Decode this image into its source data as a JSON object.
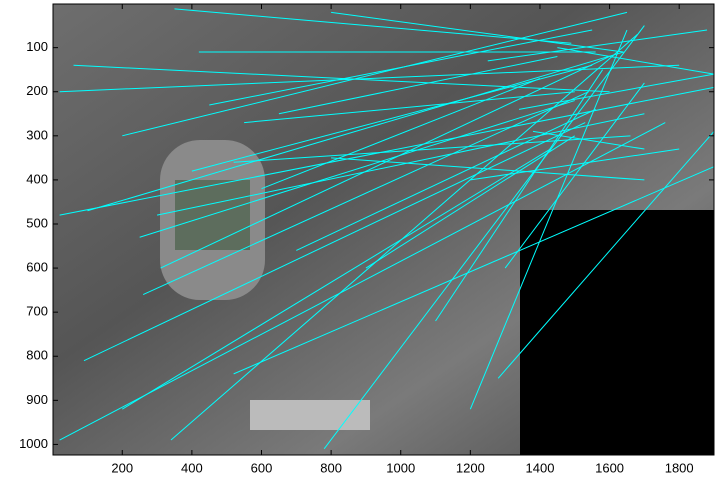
{
  "chart_data": {
    "type": "segments",
    "color": "#00ffff",
    "xlim": [
      1,
      1900
    ],
    "ylim": [
      1,
      1024
    ],
    "y_reversed": true,
    "xticks": [
      200,
      400,
      600,
      800,
      1000,
      1200,
      1400,
      1600,
      1800
    ],
    "yticks": [
      100,
      200,
      300,
      400,
      500,
      600,
      700,
      800,
      900,
      1000
    ],
    "segments": [
      {
        "x": [
          350,
          1490
        ],
        "y": [
          12,
          90
        ]
      },
      {
        "x": [
          420,
          1560
        ],
        "y": [
          110,
          110
        ]
      },
      {
        "x": [
          60,
          1600
        ],
        "y": [
          140,
          200
        ]
      },
      {
        "x": [
          20,
          1800
        ],
        "y": [
          200,
          140
        ]
      },
      {
        "x": [
          100,
          1640
        ],
        "y": [
          470,
          110
        ]
      },
      {
        "x": [
          20,
          1900
        ],
        "y": [
          480,
          190
        ]
      },
      {
        "x": [
          90,
          1530
        ],
        "y": [
          810,
          270
        ]
      },
      {
        "x": [
          20,
          1760
        ],
        "y": [
          990,
          270
        ]
      },
      {
        "x": [
          340,
          1680
        ],
        "y": [
          990,
          70
        ]
      },
      {
        "x": [
          780,
          1700
        ],
        "y": [
          1010,
          50
        ]
      },
      {
        "x": [
          1200,
          1650
        ],
        "y": [
          920,
          60
        ]
      },
      {
        "x": [
          1280,
          1900
        ],
        "y": [
          850,
          290
        ]
      },
      {
        "x": [
          520,
          1900
        ],
        "y": [
          840,
          370
        ]
      },
      {
        "x": [
          260,
          1540
        ],
        "y": [
          660,
          200
        ]
      },
      {
        "x": [
          310,
          1600
        ],
        "y": [
          600,
          120
        ]
      },
      {
        "x": [
          200,
          1430
        ],
        "y": [
          920,
          330
        ]
      },
      {
        "x": [
          700,
          1560
        ],
        "y": [
          560,
          240
        ]
      },
      {
        "x": [
          550,
          1500
        ],
        "y": [
          270,
          200
        ]
      },
      {
        "x": [
          1340,
          1900
        ],
        "y": [
          240,
          160
        ]
      },
      {
        "x": [
          1450,
          1900
        ],
        "y": [
          100,
          160
        ]
      },
      {
        "x": [
          400,
          1550
        ],
        "y": [
          380,
          140
        ]
      },
      {
        "x": [
          600,
          1400
        ],
        "y": [
          420,
          170
        ]
      },
      {
        "x": [
          520,
          1660
        ],
        "y": [
          360,
          300
        ]
      },
      {
        "x": [
          1200,
          1800
        ],
        "y": [
          400,
          330
        ]
      },
      {
        "x": [
          800,
          1700
        ],
        "y": [
          350,
          400
        ]
      },
      {
        "x": [
          1380,
          1700
        ],
        "y": [
          290,
          330
        ]
      },
      {
        "x": [
          200,
          1650
        ],
        "y": [
          300,
          20
        ]
      },
      {
        "x": [
          650,
          1450
        ],
        "y": [
          250,
          120
        ]
      },
      {
        "x": [
          450,
          1550
        ],
        "y": [
          230,
          60
        ]
      },
      {
        "x": [
          1100,
          1580
        ],
        "y": [
          720,
          150
        ]
      },
      {
        "x": [
          900,
          1500
        ],
        "y": [
          600,
          300
        ]
      },
      {
        "x": [
          250,
          1500
        ],
        "y": [
          530,
          220
        ]
      },
      {
        "x": [
          1250,
          1880
        ],
        "y": [
          130,
          60
        ]
      },
      {
        "x": [
          800,
          1640
        ],
        "y": [
          20,
          110
        ]
      },
      {
        "x": [
          300,
          1700
        ],
        "y": [
          480,
          250
        ]
      },
      {
        "x": [
          1300,
          1700
        ],
        "y": [
          600,
          180
        ]
      }
    ]
  }
}
